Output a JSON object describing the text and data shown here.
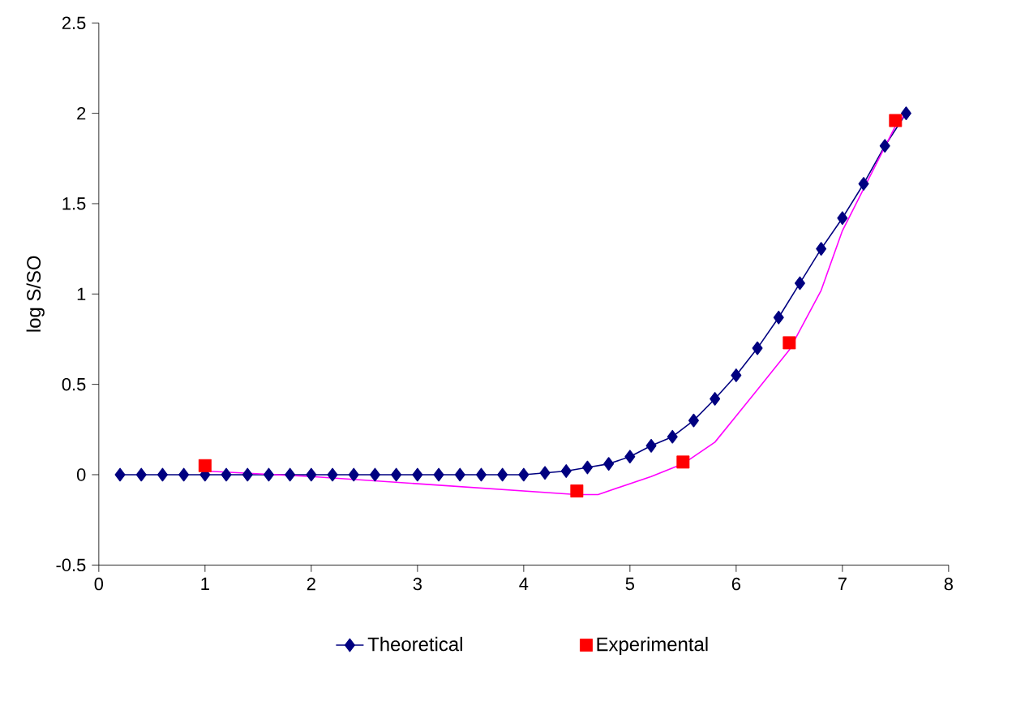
{
  "chart_data": {
    "type": "line",
    "ylabel": "log S/SO",
    "xlim": [
      0,
      8
    ],
    "xticks": [
      0,
      1,
      2,
      3,
      4,
      5,
      6,
      7,
      8
    ],
    "ylim": [
      -0.5,
      2.5
    ],
    "yticks": [
      -0.5,
      0,
      0.5,
      1,
      1.5,
      2,
      2.5
    ],
    "legend": "bottom",
    "grid": false,
    "series": [
      {
        "name": "Theoretical",
        "marker": "diamond",
        "color": "#000080",
        "x": [
          0.2,
          0.4,
          0.6,
          0.8,
          1.0,
          1.2,
          1.4,
          1.6,
          1.8,
          2.0,
          2.2,
          2.4,
          2.6,
          2.8,
          3.0,
          3.2,
          3.4,
          3.6,
          3.8,
          4.0,
          4.2,
          4.4,
          4.6,
          4.8,
          5.0,
          5.2,
          5.4,
          5.6,
          5.8,
          6.0,
          6.2,
          6.4,
          6.6,
          6.8,
          7.0,
          7.2,
          7.4,
          7.6
        ],
        "values": [
          0,
          0,
          0,
          0,
          0,
          0,
          0,
          0,
          0,
          0,
          0,
          0,
          0,
          0,
          0,
          0,
          0,
          0,
          0,
          0,
          0.01,
          0.02,
          0.04,
          0.06,
          0.1,
          0.16,
          0.21,
          0.3,
          0.42,
          0.55,
          0.7,
          0.87,
          1.06,
          1.25,
          1.42,
          1.61,
          1.82,
          2.0
        ]
      },
      {
        "marker": "none",
        "color": "#ff00ff",
        "x": [
          1,
          2,
          3,
          4,
          4.5,
          4.7,
          5.2,
          5.5,
          5.8,
          6.2,
          6.5,
          6.8,
          7.0,
          7.5,
          7.6
        ],
        "values": [
          0.02,
          -0.01,
          -0.05,
          -0.09,
          -0.11,
          -0.11,
          -0.01,
          0.06,
          0.18,
          0.47,
          0.69,
          1.02,
          1.35,
          1.93,
          2.0
        ]
      },
      {
        "name": "Experimental",
        "type": "scatter",
        "marker": "square",
        "color": "#ff0000",
        "x": [
          1,
          4.5,
          5.5,
          6.5,
          7.5
        ],
        "values": [
          0.05,
          -0.09,
          0.07,
          0.73,
          1.96
        ]
      }
    ]
  }
}
